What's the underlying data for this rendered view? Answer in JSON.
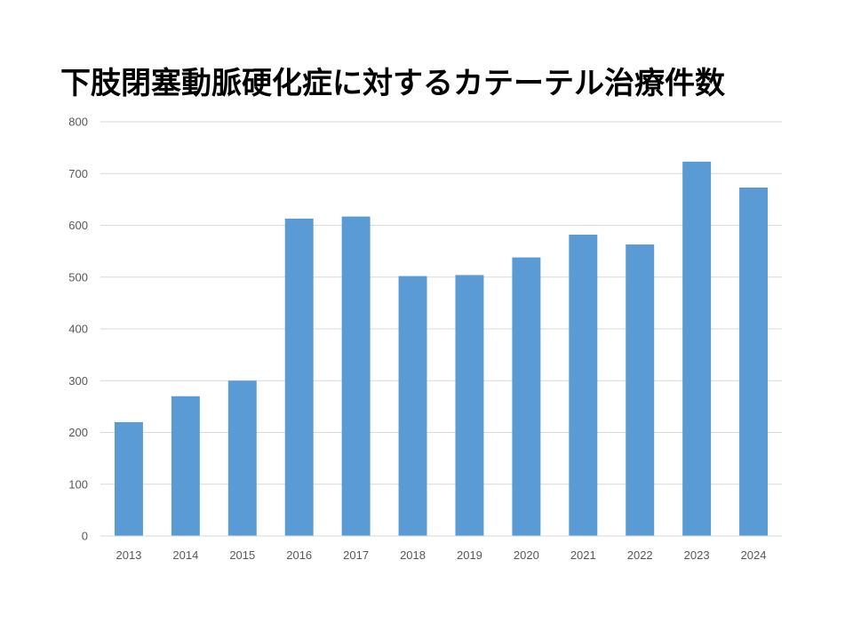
{
  "chart_data": {
    "type": "bar",
    "title": "下肢閉塞動脈硬化症に対するカテーテル治療件数",
    "xlabel": "",
    "ylabel": "",
    "categories": [
      "2013",
      "2014",
      "2015",
      "2016",
      "2017",
      "2018",
      "2019",
      "2020",
      "2021",
      "2022",
      "2023",
      "2024"
    ],
    "values": [
      220,
      270,
      300,
      613,
      617,
      502,
      504,
      538,
      582,
      563,
      723,
      673
    ],
    "ylim": [
      0,
      800
    ],
    "yticks": [
      0,
      100,
      200,
      300,
      400,
      500,
      600,
      700,
      800
    ],
    "ytick_labels": [
      "0",
      "100",
      "200",
      "300",
      "400",
      "500",
      "600",
      "700",
      "800"
    ],
    "grid": true,
    "legend": "none",
    "bar_color": "#5B9BD5",
    "grid_color": "#D9D9D9"
  }
}
